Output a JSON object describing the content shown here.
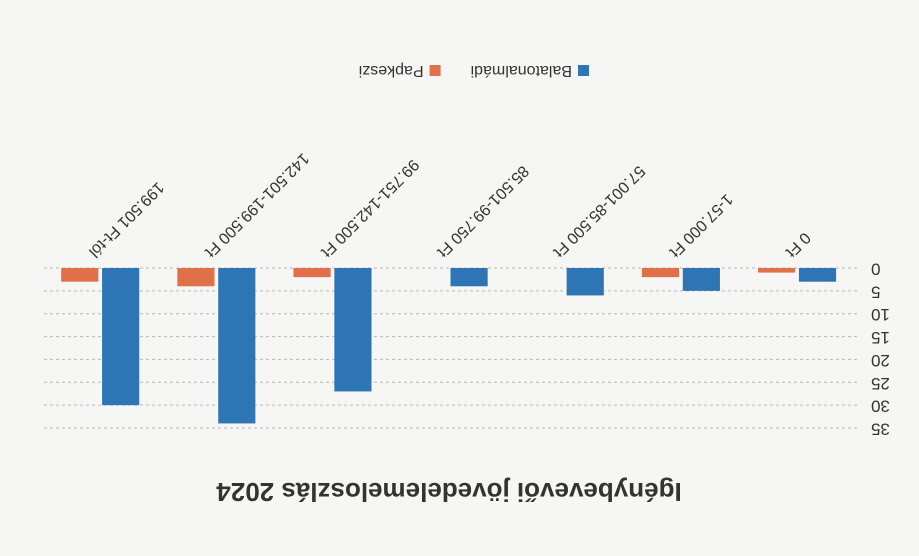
{
  "chart_data": {
    "type": "bar",
    "title": "Igénybevevői jövedelemeloszlás 2024",
    "categories": [
      "0 Ft",
      "1-57.000 Ft",
      "57.001-85.500 Ft",
      "85.501-99.750 Ft",
      "99.751-142.500 Ft",
      "142.501-199.500 Ft",
      "199.501 Ft-tól"
    ],
    "series": [
      {
        "name": "Balatonalmádi",
        "color": "#2e75b6",
        "values": [
          3,
          5,
          6,
          4,
          27,
          34,
          30
        ]
      },
      {
        "name": "Papkeszi",
        "color": "#e0704a",
        "values": [
          1,
          2,
          0,
          0,
          2,
          4,
          3
        ]
      }
    ],
    "ylim": [
      0,
      35
    ],
    "yticks": [
      0,
      5,
      10,
      15,
      20,
      25,
      30,
      35
    ],
    "grid": true,
    "legend": "bottom"
  }
}
